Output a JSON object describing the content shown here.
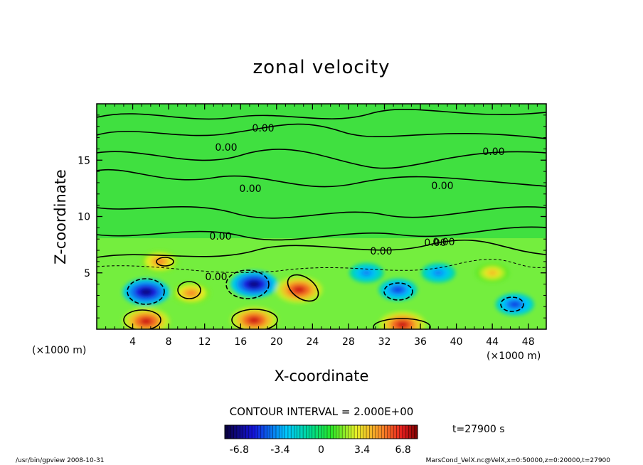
{
  "chart_data": {
    "type": "heatmap",
    "title": "zonal velocity",
    "xlabel": "X-coordinate",
    "ylabel": "Z-coordinate",
    "x_unit_left": "(×1000 m)",
    "x_unit_right": "(×1000 m)",
    "xlim": [
      0,
      50
    ],
    "ylim": [
      0,
      20
    ],
    "x_ticks": [
      "4",
      "8",
      "12",
      "16",
      "20",
      "24",
      "28",
      "32",
      "36",
      "40",
      "44",
      "48"
    ],
    "y_ticks": [
      "5",
      "10",
      "15"
    ],
    "contour_interval_text": "CONTOUR INTERVAL = 2.000E+00",
    "contour_labels": [
      "0.00",
      "0.00",
      "0.00",
      "0.00",
      "0.00",
      "0.00",
      "0.00",
      "0.00",
      "0.00",
      "0.00"
    ],
    "colorbar": {
      "range": [
        -8,
        8
      ],
      "tick_labels": [
        "-6.8",
        "-3.4",
        "0",
        "3.4",
        "6.8"
      ],
      "tick_values": [
        -6.8,
        -3.4,
        0,
        3.4,
        6.8
      ]
    },
    "time_text": "t=27900 s",
    "grid": false,
    "features": [
      {
        "x": 5.5,
        "z": 3.3,
        "value": -7
      },
      {
        "x": 10.5,
        "z": 3.2,
        "value": 5
      },
      {
        "x": 17.5,
        "z": 4.0,
        "value": -7
      },
      {
        "x": 22.5,
        "z": 3.5,
        "value": 7
      },
      {
        "x": 5.5,
        "z": 0.7,
        "value": 7
      },
      {
        "x": 17.5,
        "z": 0.8,
        "value": 7
      },
      {
        "x": 34.0,
        "z": 0.4,
        "value": 7
      },
      {
        "x": 33.5,
        "z": 3.5,
        "value": -5
      },
      {
        "x": 30.0,
        "z": 5.0,
        "value": -4
      },
      {
        "x": 38.0,
        "z": 5.0,
        "value": -4
      },
      {
        "x": 44.0,
        "z": 5.0,
        "value": 4
      },
      {
        "x": 46.5,
        "z": 2.2,
        "value": -5
      },
      {
        "x": 7.0,
        "z": 6.0,
        "value": 5
      }
    ]
  },
  "footer": {
    "left": "/usr/bin/gpview   2008-10-31",
    "right": "MarsCond_VelX.nc@VelX,x=0:50000,z=0:20000,t=27900"
  }
}
